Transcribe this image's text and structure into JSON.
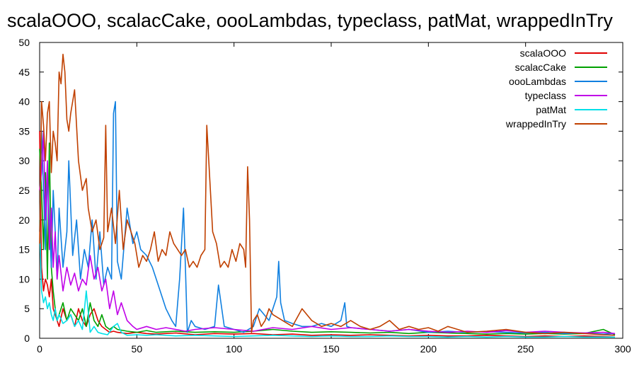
{
  "chart_data": {
    "type": "line",
    "title": "scalaOOO, scalacCake, oooLambdas, typeclass, patMat, wrappedInTry",
    "xlabel": "",
    "ylabel": "",
    "xlim": [
      0,
      300
    ],
    "ylim": [
      0,
      50
    ],
    "xticks": [
      0,
      50,
      100,
      150,
      200,
      250,
      300
    ],
    "yticks": [
      0,
      5,
      10,
      15,
      20,
      25,
      30,
      35,
      40,
      45,
      50
    ],
    "grid": false,
    "legend_position": "top-right",
    "series": [
      {
        "name": "scalaOOO",
        "color": "#e00000",
        "x": [
          0,
          1,
          2,
          3,
          4,
          5,
          6,
          7,
          8,
          9,
          10,
          12,
          14,
          16,
          18,
          20,
          22,
          24,
          26,
          28,
          30,
          32,
          34,
          36,
          38,
          40,
          45,
          50,
          55,
          60,
          70,
          80,
          90,
          100,
          110,
          120,
          130,
          140,
          150,
          160,
          170,
          180,
          190,
          200,
          210,
          220,
          230,
          240,
          250,
          260,
          270,
          280,
          290,
          296
        ],
        "values": [
          35,
          12,
          8,
          10,
          9,
          7,
          10,
          5,
          4,
          3,
          2,
          5,
          3,
          4,
          2,
          5,
          3,
          2,
          4,
          5,
          3,
          2,
          1.5,
          1,
          1.2,
          1,
          0.8,
          1,
          0.8,
          0.7,
          0.9,
          0.6,
          0.8,
          0.7,
          0.8,
          0.6,
          0.7,
          0.5,
          0.6,
          0.5,
          0.6,
          0.5,
          0.4,
          0.5,
          0.4,
          0.4,
          0.5,
          0.4,
          0.3,
          0.4,
          0.3,
          0.4,
          0.3,
          0.2
        ]
      },
      {
        "name": "scalacCake",
        "color": "#00a000",
        "x": [
          0,
          1,
          2,
          3,
          4,
          5,
          6,
          7,
          8,
          9,
          10,
          12,
          14,
          16,
          18,
          20,
          22,
          24,
          26,
          28,
          30,
          32,
          34,
          36,
          38,
          40,
          45,
          50,
          55,
          60,
          70,
          80,
          90,
          100,
          110,
          120,
          130,
          140,
          150,
          160,
          170,
          180,
          190,
          200,
          210,
          220,
          230,
          240,
          250,
          260,
          270,
          280,
          290,
          296
        ],
        "values": [
          32,
          25,
          15,
          28,
          10,
          33,
          12,
          8,
          5,
          3,
          4,
          6,
          3,
          5,
          4,
          3,
          5,
          2,
          6,
          3,
          2,
          4,
          2,
          1.5,
          2,
          1.5,
          1.2,
          1,
          1.3,
          1,
          1.2,
          1,
          1.1,
          1,
          1.2,
          1.5,
          1.2,
          1,
          1.1,
          1,
          0.9,
          1,
          0.8,
          1,
          0.9,
          0.8,
          0.7,
          0.8,
          0.7,
          0.8,
          0.7,
          0.8,
          1.5,
          0.6
        ]
      },
      {
        "name": "oooLambdas",
        "color": "#1080e0",
        "x": [
          0,
          1,
          2,
          3,
          4,
          5,
          6,
          7,
          8,
          9,
          10,
          12,
          14,
          15,
          17,
          19,
          21,
          23,
          25,
          27,
          29,
          31,
          33,
          35,
          37,
          38,
          39,
          40,
          42,
          45,
          48,
          50,
          52,
          55,
          58,
          60,
          62,
          65,
          68,
          70,
          72,
          74,
          75,
          76,
          78,
          80,
          85,
          90,
          92,
          95,
          100,
          105,
          110,
          113,
          118,
          122,
          123,
          124,
          126,
          130,
          135,
          140,
          145,
          150,
          155,
          157,
          158,
          160,
          170,
          180,
          190,
          200,
          210,
          220,
          230,
          240,
          250,
          260,
          270,
          280,
          290,
          296
        ],
        "values": [
          18,
          35,
          25,
          15,
          28,
          20,
          12,
          25,
          18,
          10,
          22,
          12,
          18,
          30,
          14,
          20,
          10,
          15,
          12,
          20,
          10,
          18,
          9,
          12,
          10,
          38,
          40,
          13,
          10,
          22,
          16,
          18,
          15,
          14,
          12,
          10,
          8,
          5,
          3,
          2,
          10,
          22,
          12,
          1,
          3,
          2,
          1.5,
          2,
          9,
          2,
          1.5,
          1,
          2,
          5,
          3,
          7,
          13,
          6,
          3,
          2.5,
          2,
          2,
          2.5,
          2,
          3,
          6,
          2,
          1.8,
          1.5,
          1.2,
          1.5,
          1,
          1.2,
          1,
          1.1,
          1,
          0.9,
          1,
          0.8,
          0.9,
          0.7,
          0.8
        ]
      },
      {
        "name": "typeclass",
        "color": "#c000e8",
        "x": [
          0,
          1,
          2,
          3,
          4,
          5,
          6,
          7,
          8,
          9,
          10,
          12,
          14,
          16,
          18,
          20,
          22,
          24,
          26,
          28,
          30,
          32,
          34,
          36,
          38,
          40,
          42,
          45,
          48,
          50,
          55,
          60,
          65,
          70,
          75,
          80,
          90,
          100,
          110,
          120,
          130,
          140,
          150,
          160,
          170,
          180,
          190,
          200,
          210,
          220,
          230,
          240,
          250,
          260,
          270,
          280,
          290,
          296
        ],
        "values": [
          25,
          28,
          35,
          20,
          30,
          15,
          22,
          12,
          18,
          10,
          14,
          8,
          12,
          9,
          11,
          8,
          10,
          9,
          14,
          10,
          12,
          8,
          10,
          5,
          8,
          4,
          6,
          3,
          2,
          1.5,
          2,
          1.5,
          1.8,
          1.5,
          1.2,
          1.5,
          1.8,
          1.5,
          1.2,
          1.8,
          1.5,
          2,
          1.5,
          1.8,
          1.5,
          1.2,
          1.5,
          1.2,
          1,
          1.2,
          1,
          1.3,
          1,
          1.2,
          1,
          0.9,
          1,
          0.8
        ]
      },
      {
        "name": "patMat",
        "color": "#00e0e8",
        "x": [
          0,
          1,
          2,
          3,
          4,
          5,
          6,
          7,
          8,
          9,
          10,
          12,
          14,
          16,
          18,
          20,
          22,
          24,
          26,
          28,
          30,
          32,
          35,
          38,
          40,
          42,
          45,
          50,
          55,
          60,
          70,
          80,
          90,
          100,
          110,
          120,
          130,
          140,
          150,
          160,
          170,
          180,
          190,
          200,
          210,
          220,
          230,
          240,
          250,
          260,
          270,
          280,
          290,
          296
        ],
        "values": [
          20,
          8,
          6,
          7,
          5,
          6,
          4,
          3,
          5,
          3,
          4,
          2.5,
          3,
          4,
          2,
          3,
          1.5,
          8,
          1,
          2,
          1,
          0.8,
          0.6,
          2,
          2.5,
          1,
          0.5,
          0.6,
          0.5,
          0.6,
          0.4,
          0.5,
          0.4,
          0.3,
          0.4,
          0.5,
          0.4,
          0.3,
          0.4,
          0.3,
          0.3,
          0.4,
          0.3,
          0.3,
          0.2,
          0.3,
          0.2,
          0.3,
          0.2,
          0.2,
          0.3,
          0.2,
          0.2,
          0.2
        ]
      },
      {
        "name": "wrappedInTry",
        "color": "#c04000",
        "x": [
          0,
          1,
          2,
          3,
          4,
          5,
          6,
          7,
          8,
          9,
          10,
          11,
          12,
          13,
          14,
          15,
          16,
          18,
          20,
          22,
          24,
          25,
          27,
          29,
          31,
          33,
          34,
          35,
          37,
          39,
          41,
          43,
          45,
          47,
          49,
          51,
          53,
          55,
          57,
          59,
          61,
          63,
          65,
          67,
          69,
          71,
          73,
          75,
          77,
          79,
          81,
          83,
          85,
          86,
          87,
          89,
          91,
          93,
          95,
          97,
          99,
          101,
          103,
          105,
          106,
          107,
          108,
          109,
          110,
          112,
          114,
          116,
          118,
          120,
          125,
          130,
          135,
          140,
          145,
          150,
          155,
          160,
          165,
          170,
          175,
          180,
          185,
          190,
          195,
          200,
          205,
          210,
          220,
          230,
          240,
          250,
          260,
          270,
          280,
          290,
          296
        ],
        "values": [
          16,
          40,
          36,
          30,
          38,
          40,
          28,
          35,
          33,
          30,
          45,
          43,
          48,
          45,
          37,
          35,
          38,
          42,
          30,
          25,
          27,
          22,
          18,
          20,
          15,
          17,
          36,
          18,
          22,
          16,
          25,
          15,
          20,
          18,
          16,
          12,
          14,
          13,
          15,
          18,
          13,
          15,
          14,
          18,
          16,
          15,
          14,
          15,
          12,
          13,
          12,
          14,
          15,
          36,
          30,
          18,
          16,
          12,
          13,
          12,
          15,
          13,
          16,
          15,
          12,
          29,
          20,
          1,
          3,
          4,
          2,
          3,
          5,
          4,
          3,
          2,
          5,
          3,
          2,
          2.5,
          2,
          3,
          2,
          1.5,
          2,
          3,
          1.5,
          2,
          1.5,
          1.8,
          1.2,
          2,
          1,
          1.2,
          1.5,
          1,
          0.8,
          1,
          0.8,
          0.6,
          0.5
        ]
      }
    ]
  }
}
